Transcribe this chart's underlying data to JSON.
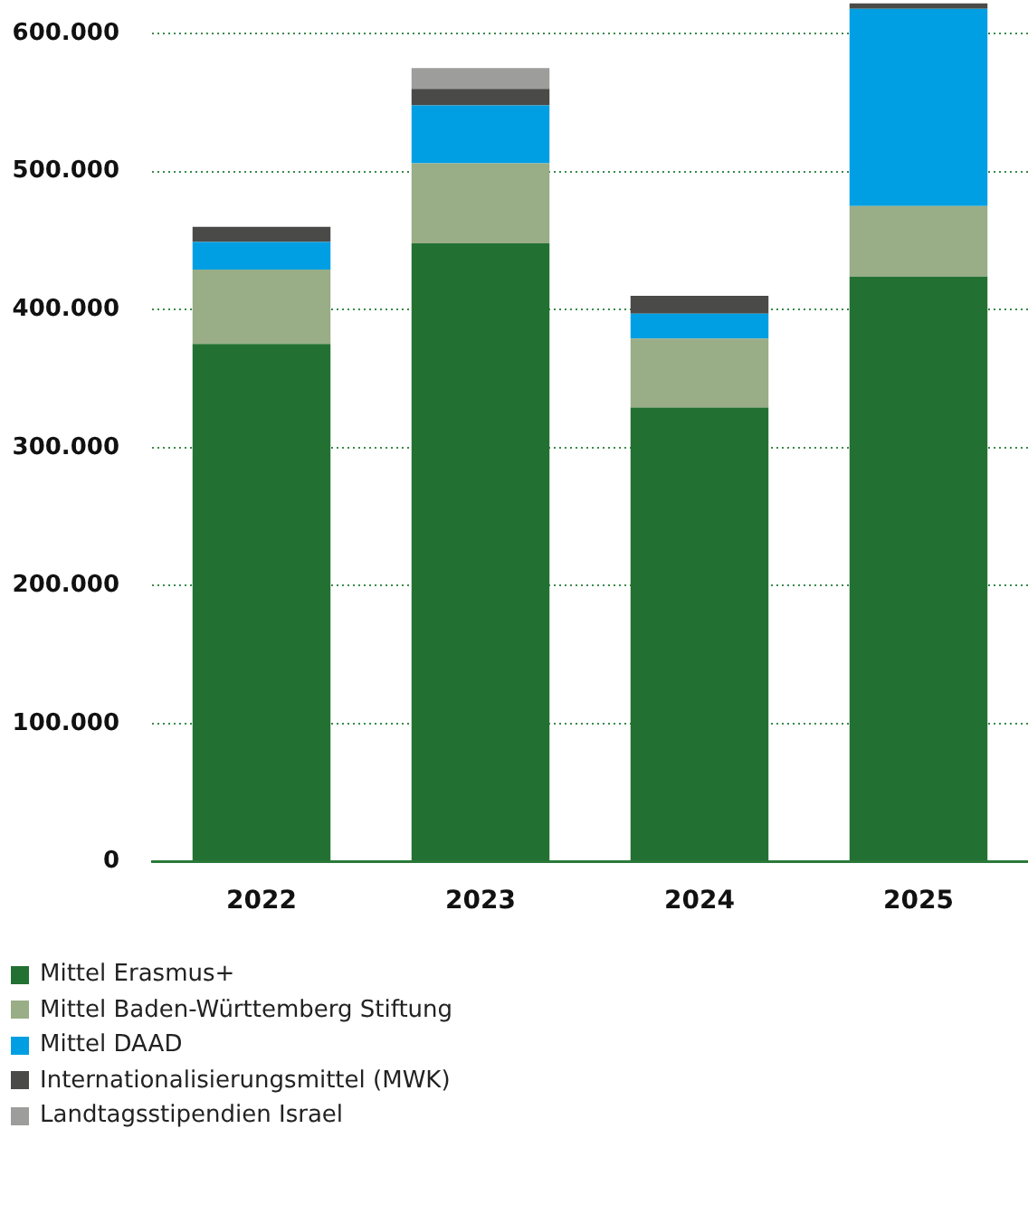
{
  "chart_data": {
    "type": "bar",
    "stacked": true,
    "categories": [
      "2022",
      "2023",
      "2024",
      "2025"
    ],
    "series": [
      {
        "name": "Mittel Erasmus+",
        "color": "#237132",
        "values": [
          375000,
          448000,
          329000,
          424000
        ]
      },
      {
        "name": "Mittel Baden-Württemberg Stiftung",
        "color": "#99ad87",
        "values": [
          54000,
          58000,
          50000,
          51000
        ]
      },
      {
        "name": "Mittel DAAD",
        "color": "#009fe3",
        "values": [
          20000,
          42000,
          18000,
          143000
        ]
      },
      {
        "name": "Internationalisierungsmittel (MWK)",
        "color": "#4a4a49",
        "values": [
          11000,
          12000,
          13000,
          4000
        ]
      },
      {
        "name": "Landtagsstipendien Israel",
        "color": "#9d9d9c",
        "values": [
          null,
          15000,
          null,
          null
        ]
      }
    ],
    "ylim": [
      0,
      622000
    ],
    "yticks": [
      {
        "value": 0,
        "label": "0"
      },
      {
        "value": 100000,
        "label": "100.000"
      },
      {
        "value": 200000,
        "label": "200.000"
      },
      {
        "value": 300000,
        "label": "300.000"
      },
      {
        "value": 400000,
        "label": "400.000"
      },
      {
        "value": 500000,
        "label": "500.000"
      },
      {
        "value": 600000,
        "label": "600.000"
      }
    ],
    "grid": "y",
    "legend": "bottom left"
  }
}
